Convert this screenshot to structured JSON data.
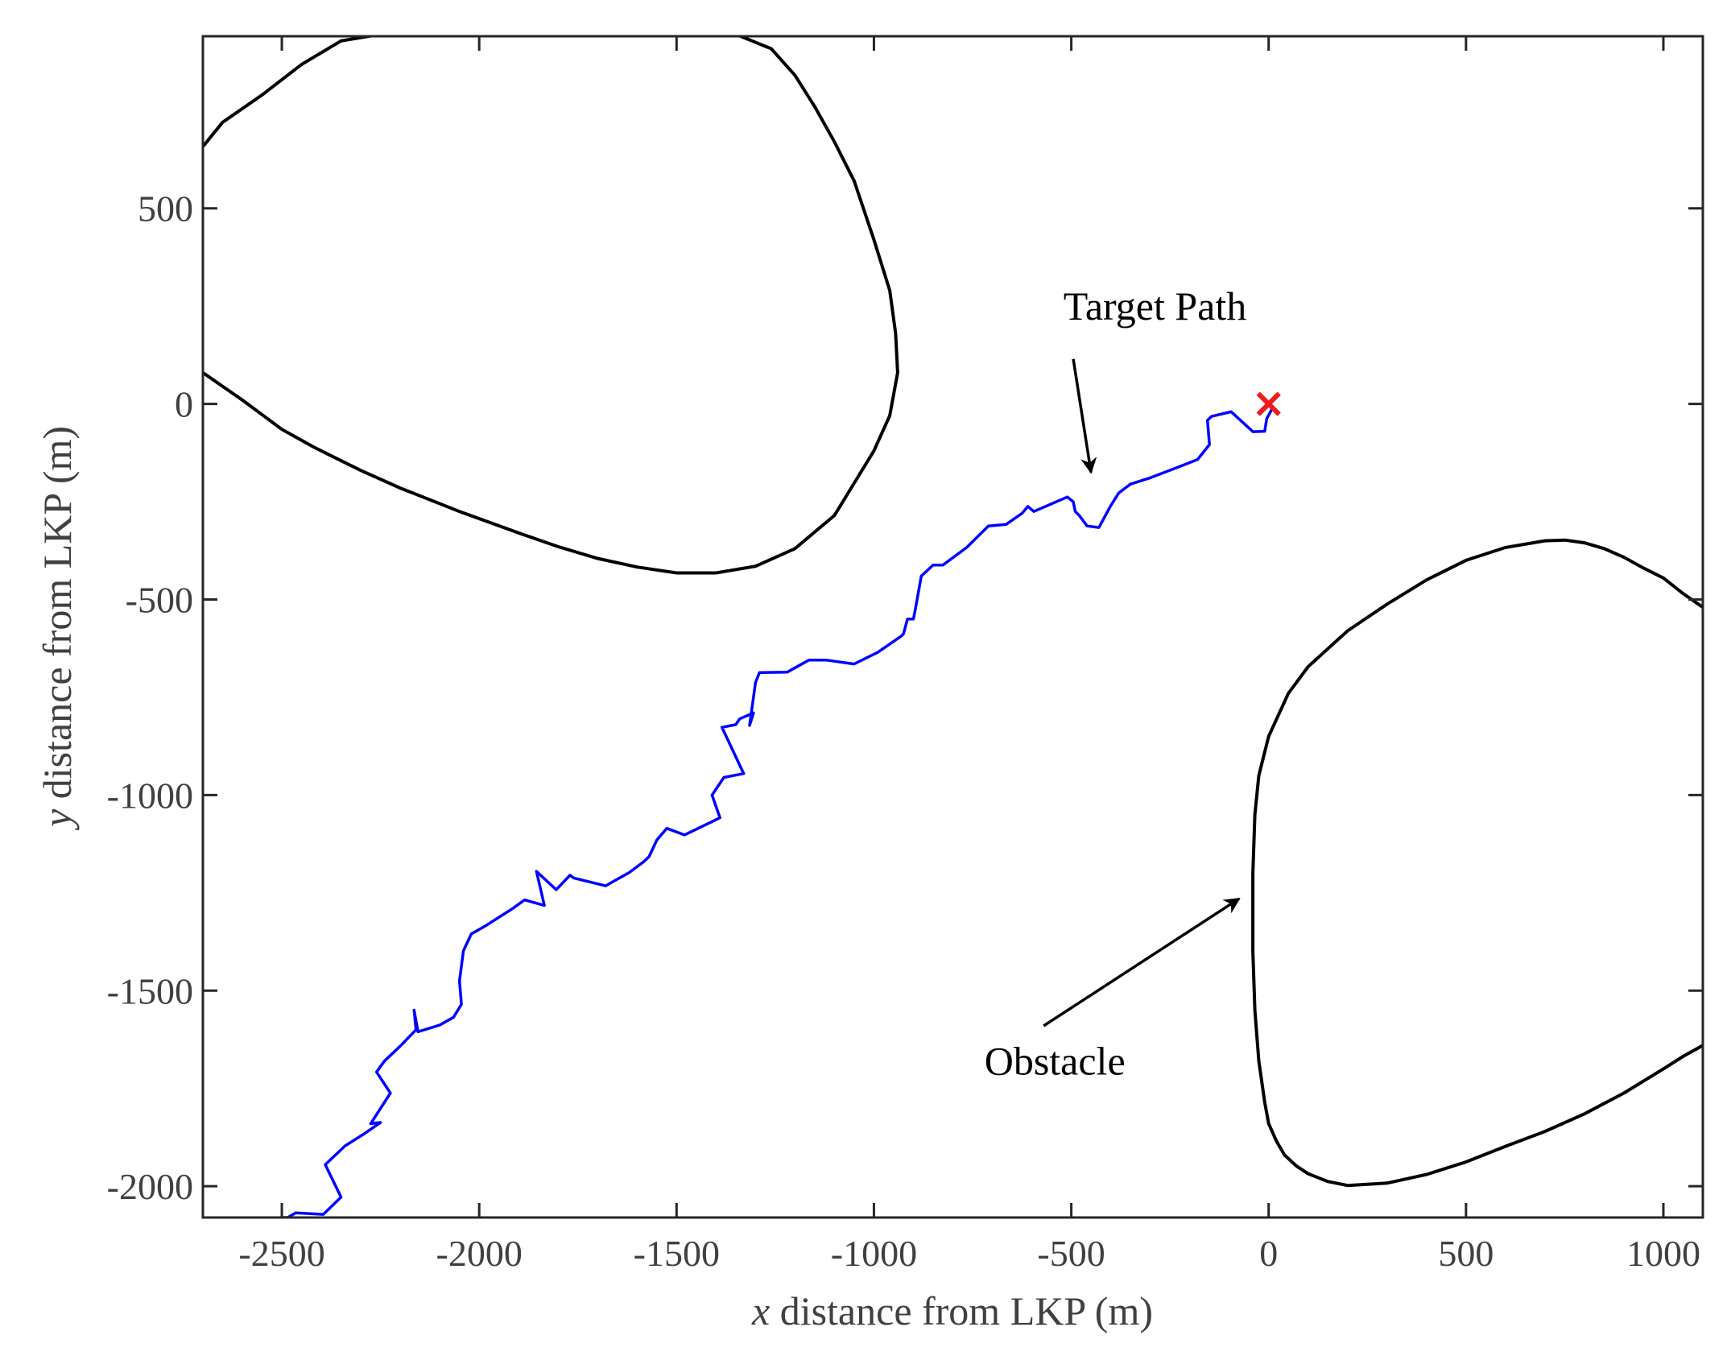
{
  "chart_data": {
    "type": "line",
    "title": "",
    "xlabel": {
      "var": "x",
      "rest": " distance from LKP (m)"
    },
    "ylabel": {
      "var": "y",
      "rest": " distance from LKP (m)"
    },
    "xlim": [
      -2700,
      1100
    ],
    "ylim": [
      -2080,
      940
    ],
    "grid": false,
    "xticks": [
      -2500,
      -2000,
      -1500,
      -1000,
      -500,
      0,
      500,
      1000
    ],
    "yticks": [
      500,
      0,
      -500,
      -1000,
      -1500,
      -2000
    ],
    "xtick_labels": [
      "-2500",
      "-2000",
      "-1500",
      "-1000",
      "-500",
      "0",
      "500",
      "1000"
    ],
    "ytick_labels": [
      "500",
      "0",
      "-500",
      "-1000",
      "-1500",
      "-2000"
    ],
    "series": [
      {
        "name": "Target Path",
        "color": "#0000ff",
        "x": [
          -2505,
          -2485,
          -2465,
          -2395,
          -2350,
          -2390,
          -2340,
          -2290,
          -2250,
          -2275,
          -2225,
          -2260,
          -2240,
          -2200,
          -2160,
          -2165,
          -2155,
          -2100,
          -2065,
          -2045,
          -2050,
          -2040,
          -2020,
          -1985,
          -1915,
          -1885,
          -1835,
          -1855,
          -1805,
          -1770,
          -1760,
          -1680,
          -1620,
          -1585,
          -1570,
          -1550,
          -1525,
          -1480,
          -1390,
          -1410,
          -1380,
          -1330,
          -1385,
          -1350,
          -1340,
          -1305,
          -1315,
          -1300,
          -1290,
          -1220,
          -1165,
          -1120,
          -1050,
          -990,
          -930,
          -925,
          -915,
          -900,
          -895,
          -880,
          -850,
          -825,
          -765,
          -710,
          -665,
          -625,
          -610,
          -595,
          -510,
          -495,
          -490,
          -480,
          -460,
          -430,
          -400,
          -380,
          -350,
          -300,
          -230,
          -180,
          -150,
          -155,
          -145,
          -95,
          -40,
          -10,
          -5,
          10
        ],
        "y": [
          -2080,
          -2080,
          -2068,
          -2072,
          -2028,
          -1945,
          -1897,
          -1865,
          -1837,
          -1840,
          -1762,
          -1708,
          -1680,
          -1642,
          -1600,
          -1550,
          -1605,
          -1588,
          -1568,
          -1535,
          -1475,
          -1398,
          -1355,
          -1335,
          -1290,
          -1268,
          -1282,
          -1195,
          -1242,
          -1205,
          -1212,
          -1232,
          -1198,
          -1172,
          -1158,
          -1115,
          -1085,
          -1102,
          -1058,
          -1000,
          -955,
          -945,
          -827,
          -820,
          -805,
          -790,
          -822,
          -712,
          -687,
          -686,
          -655,
          -655,
          -665,
          -635,
          -593,
          -588,
          -550,
          -550,
          -525,
          -440,
          -412,
          -412,
          -367,
          -312,
          -308,
          -280,
          -262,
          -275,
          -238,
          -250,
          -275,
          -285,
          -312,
          -316,
          -260,
          -228,
          -205,
          -189,
          -162,
          -142,
          -104,
          -42,
          -32,
          -20,
          -71,
          -70,
          -38,
          -10
        ]
      }
    ],
    "obstacles": [
      {
        "name": "Obstacle (upper left)",
        "color": "#000000",
        "x": [
          -2700,
          -2600,
          -2500,
          -2420,
          -2380,
          -2300,
          -2200,
          -2050,
          -1900,
          -1800,
          -1700,
          -1600,
          -1500,
          -1400,
          -1300,
          -1200,
          -1100,
          -1000,
          -960,
          -940,
          -945,
          -960,
          -1000,
          -1050,
          -1100,
          -1150,
          -1200,
          -1260,
          -1350,
          -1450,
          -1550,
          -1650,
          -1750,
          -1850,
          -1950,
          -2050,
          -2150,
          -2250,
          -2350,
          -2450,
          -2550,
          -2650,
          -2700
        ],
        "y": [
          80,
          10,
          -65,
          -110,
          -130,
          -170,
          -215,
          -275,
          -330,
          -365,
          -395,
          -417,
          -432,
          -432,
          -415,
          -370,
          -285,
          -120,
          -30,
          80,
          180,
          290,
          420,
          570,
          670,
          760,
          840,
          908,
          945,
          945,
          945,
          945,
          945,
          945,
          945,
          945,
          945,
          945,
          928,
          868,
          790,
          720,
          658
        ]
      },
      {
        "name": "Obstacle (lower right)",
        "color": "#000000",
        "x": [
          1100,
          1050,
          1000,
          950,
          900,
          850,
          800,
          750,
          700,
          600,
          500,
          400,
          300,
          200,
          100,
          50,
          0,
          -25,
          -35,
          -40,
          -40,
          -35,
          -25,
          -10,
          0,
          20,
          40,
          70,
          100,
          150,
          200,
          300,
          400,
          500,
          600,
          700,
          800,
          900,
          1000,
          1050,
          1100
        ],
        "y": [
          -520,
          -485,
          -445,
          -420,
          -392,
          -370,
          -355,
          -348,
          -350,
          -367,
          -400,
          -450,
          -512,
          -580,
          -672,
          -740,
          -850,
          -950,
          -1050,
          -1200,
          -1400,
          -1550,
          -1680,
          -1785,
          -1840,
          -1885,
          -1920,
          -1948,
          -1968,
          -1988,
          -1998,
          -1992,
          -1970,
          -1938,
          -1898,
          -1860,
          -1815,
          -1762,
          -1700,
          -1668,
          -1640
        ]
      }
    ],
    "marker": {
      "name": "LKP",
      "x": 0,
      "y": 0,
      "symbol": "x",
      "color": "#ee1c1c"
    },
    "annotations": [
      {
        "text": "Target Path",
        "text_x": -520,
        "text_y": 215,
        "arrow_from": [
          -495,
          115
        ],
        "arrow_to": [
          -450,
          -175
        ]
      },
      {
        "text": "Obstacle",
        "text_x": -720,
        "text_y": -1715,
        "arrow_from": [
          -570,
          -1590
        ],
        "arrow_to": [
          -75,
          -1265
        ]
      }
    ]
  }
}
